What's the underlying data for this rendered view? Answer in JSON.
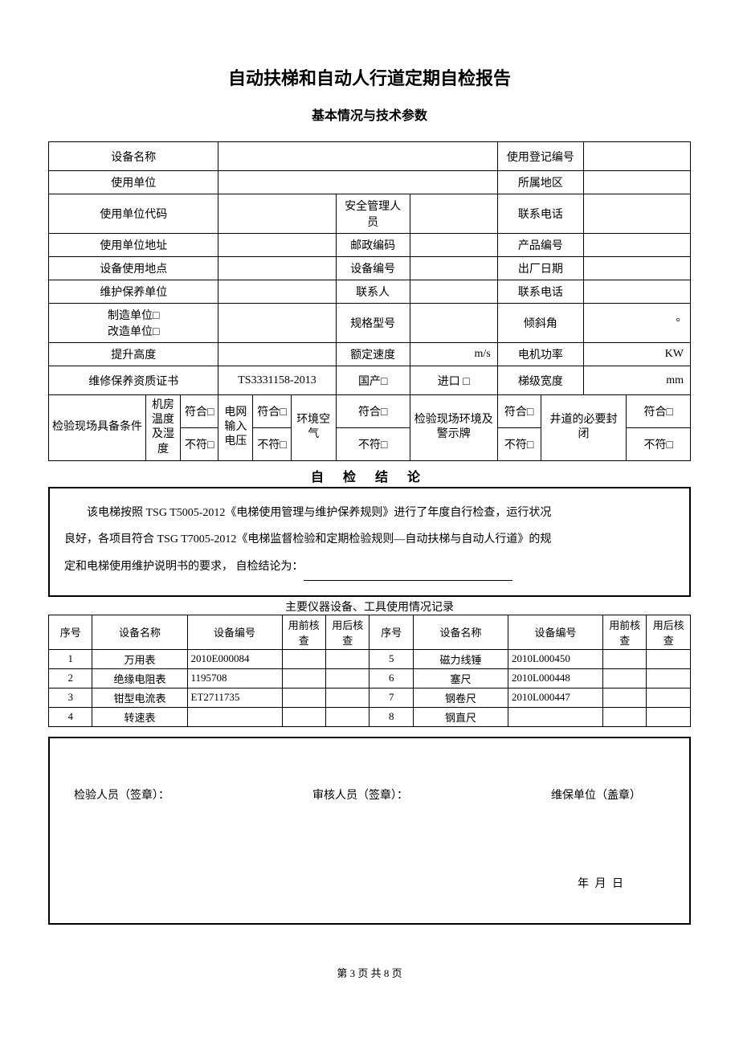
{
  "title": "自动扶梯和自动人行道定期自检报告",
  "subtitle": "基本情况与技术参数",
  "labels": {
    "equip_name": "设备名称",
    "reg_no": "使用登记编号",
    "use_unit": "使用单位",
    "region": "所属地区",
    "use_unit_code": "使用单位代码",
    "safety_mgr": "安全管理人员",
    "contact_phone": "联系电话",
    "use_unit_addr": "使用单位地址",
    "post_code": "邮政编码",
    "product_no": "产品编号",
    "use_location": "设备使用地点",
    "equip_no": "设备编号",
    "mfg_date": "出厂日期",
    "maint_unit": "维护保养单位",
    "contact_person": "联系人",
    "contact_phone2": "联系电话",
    "make_unit": "制造单位□\n改造单位□",
    "spec_model": "规格型号",
    "incline": "倾斜角",
    "incline_unit": "°",
    "lift_height": "提升高度",
    "rated_speed": "额定速度",
    "rated_speed_unit": "m/s",
    "motor_power": "电机功率",
    "motor_power_unit": "KW",
    "maint_cert": "维修保养资质证书",
    "cert_val": "TS3331158-2013",
    "domestic": "国产□",
    "imported": "进口 □",
    "step_width": "梯级宽度",
    "step_width_unit": "mm",
    "site_cond": "检验现场具备条件",
    "room_temp": "机房温度及湿度",
    "grid_voltage": "电网输入电压",
    "env_air": "环境空气",
    "site_sign": "检验现场环境及警示牌",
    "shaft_close": "井道的必要封闭",
    "conform": "符合□",
    "not_conform": "不符□"
  },
  "conclusion": {
    "section_title": "自 检 结 论",
    "line1": "该电梯按照 TSG T5005-2012《电梯使用管理与维护保养规则》进行了年度自行检查，运行状况",
    "line2": "良好，各项目符合 TSG T7005-2012《电梯监督检验和定期检验规则—自动扶梯与自动人行道》的规",
    "line3_prefix": "定和电梯使用维护说明书的要求，  自检结论为："
  },
  "instruments": {
    "title": "主要仪器设备、工具使用情况记录",
    "headers": {
      "seq": "序号",
      "name": "设备名称",
      "no": "设备编号",
      "pre": "用前核查",
      "post": "用后核查"
    },
    "rows_left": [
      {
        "seq": "1",
        "name": "万用表",
        "no": "2010E000084"
      },
      {
        "seq": "2",
        "name": "绝缘电阻表",
        "no": "1195708"
      },
      {
        "seq": "3",
        "name": "钳型电流表",
        "no": "ET2711735"
      },
      {
        "seq": "4",
        "name": "转速表",
        "no": ""
      }
    ],
    "rows_right": [
      {
        "seq": "5",
        "name": "磁力线锤",
        "no": "2010L000450"
      },
      {
        "seq": "6",
        "name": "塞尺",
        "no": "2010L000448"
      },
      {
        "seq": "7",
        "name": "钢卷尺",
        "no": "2010L000447"
      },
      {
        "seq": "8",
        "name": "钢直尺",
        "no": ""
      }
    ]
  },
  "signatures": {
    "inspector": "检验人员（签章）：",
    "reviewer": "审核人员（签章）：",
    "maint": "维保单位（盖章）",
    "date": "年        月        日"
  },
  "footer": "第 3 页 共 8 页"
}
